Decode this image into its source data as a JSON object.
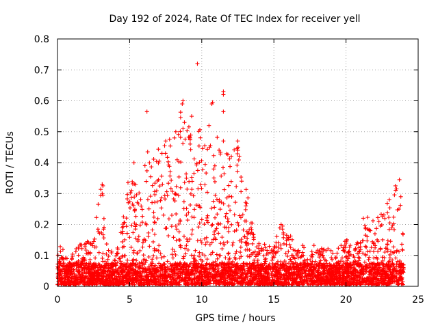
{
  "chart_data": {
    "type": "scatter",
    "title": "Day 192 of 2024, Rate Of TEC Index for receiver yell",
    "xlabel": "GPS time / hours",
    "ylabel": "ROTI / TECUs",
    "xlim": [
      0,
      25
    ],
    "ylim": [
      0,
      0.8
    ],
    "xticks": [
      0,
      5,
      10,
      15,
      20,
      25
    ],
    "xtick_labels": [
      "0",
      "5",
      "10",
      "15",
      "20",
      "25"
    ],
    "yticks": [
      0,
      0.1,
      0.2,
      0.3,
      0.4,
      0.5,
      0.6,
      0.7,
      0.8
    ],
    "ytick_labels": [
      "0",
      "0.1",
      "0.2",
      "0.3",
      "0.4",
      "0.5",
      "0.6",
      "0.7",
      "0.8"
    ],
    "grid": true,
    "marker": "plus",
    "marker_color": "#ff0000",
    "series": [
      {
        "name": "ROTI",
        "envelope": [
          [
            0.0,
            0.13
          ],
          [
            0.5,
            0.12
          ],
          [
            1.0,
            0.11
          ],
          [
            1.5,
            0.13
          ],
          [
            2.0,
            0.14
          ],
          [
            2.5,
            0.15
          ],
          [
            3.0,
            0.33
          ],
          [
            3.5,
            0.12
          ],
          [
            4.0,
            0.12
          ],
          [
            4.5,
            0.2
          ],
          [
            5.0,
            0.38
          ],
          [
            5.5,
            0.35
          ],
          [
            6.0,
            0.4
          ],
          [
            6.5,
            0.4
          ],
          [
            7.0,
            0.45
          ],
          [
            7.5,
            0.48
          ],
          [
            8.0,
            0.5
          ],
          [
            8.5,
            0.6
          ],
          [
            9.0,
            0.55
          ],
          [
            9.5,
            0.48
          ],
          [
            10.0,
            0.52
          ],
          [
            10.5,
            0.45
          ],
          [
            11.0,
            0.5
          ],
          [
            11.5,
            0.45
          ],
          [
            12.0,
            0.42
          ],
          [
            12.5,
            0.46
          ],
          [
            13.0,
            0.35
          ],
          [
            13.5,
            0.2
          ],
          [
            14.0,
            0.14
          ],
          [
            14.5,
            0.13
          ],
          [
            15.0,
            0.13
          ],
          [
            15.5,
            0.2
          ],
          [
            16.0,
            0.18
          ],
          [
            16.5,
            0.14
          ],
          [
            17.0,
            0.13
          ],
          [
            17.5,
            0.14
          ],
          [
            18.0,
            0.12
          ],
          [
            18.5,
            0.12
          ],
          [
            19.0,
            0.12
          ],
          [
            19.5,
            0.12
          ],
          [
            20.0,
            0.15
          ],
          [
            20.5,
            0.12
          ],
          [
            21.0,
            0.15
          ],
          [
            21.5,
            0.22
          ],
          [
            22.0,
            0.22
          ],
          [
            22.5,
            0.24
          ],
          [
            23.0,
            0.28
          ],
          [
            23.5,
            0.34
          ],
          [
            24.0,
            0.2
          ]
        ],
        "outliers": [
          [
            9.7,
            0.72
          ],
          [
            11.5,
            0.63
          ],
          [
            11.5,
            0.62
          ],
          [
            10.7,
            0.59
          ],
          [
            10.75,
            0.595
          ],
          [
            8.7,
            0.6
          ],
          [
            8.65,
            0.59
          ],
          [
            6.2,
            0.565
          ],
          [
            11.5,
            0.565
          ],
          [
            9.3,
            0.55
          ],
          [
            8.8,
            0.53
          ],
          [
            8.7,
            0.51
          ],
          [
            10.5,
            0.52
          ],
          [
            8.2,
            0.5
          ],
          [
            8.1,
            0.48
          ],
          [
            9.2,
            0.46
          ],
          [
            12.5,
            0.47
          ],
          [
            12.5,
            0.44
          ],
          [
            12.6,
            0.42
          ],
          [
            11.5,
            0.47
          ],
          [
            10.6,
            0.455
          ],
          [
            10.55,
            0.45
          ],
          [
            7.5,
            0.47
          ],
          [
            6.25,
            0.435
          ],
          [
            5.3,
            0.4
          ],
          [
            23.7,
            0.345
          ],
          [
            23.5,
            0.315
          ],
          [
            23.8,
            0.29
          ],
          [
            23.0,
            0.28
          ],
          [
            21.2,
            0.22
          ],
          [
            15.5,
            0.2
          ],
          [
            15.6,
            0.195
          ],
          [
            3.1,
            0.33
          ],
          [
            3.15,
            0.325
          ],
          [
            3.1,
            0.3
          ],
          [
            3.15,
            0.295
          ],
          [
            2.8,
            0.185
          ],
          [
            3.2,
            0.185
          ]
        ]
      }
    ]
  }
}
